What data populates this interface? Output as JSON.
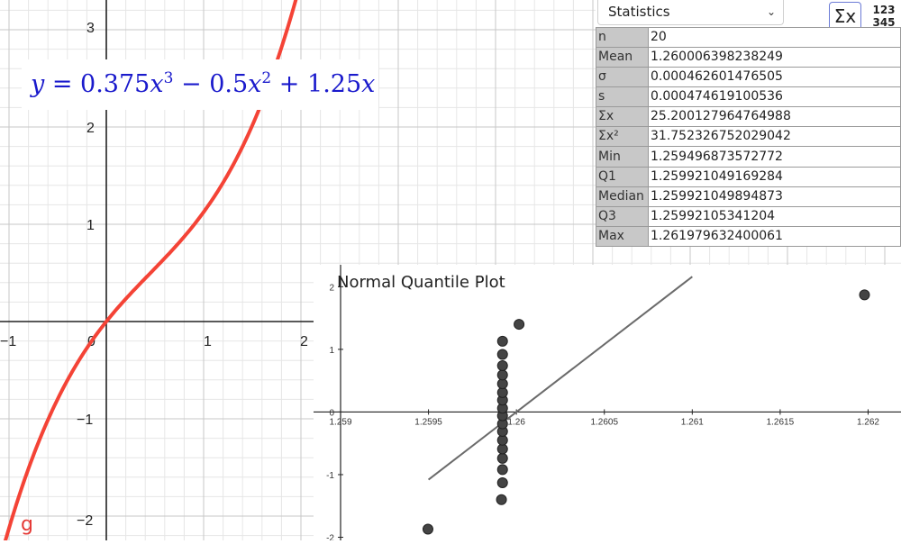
{
  "graph": {
    "function_label": "g",
    "formula": {
      "lhs": "y = ",
      "coef3": "0.375",
      "op1": " − ",
      "coef2": "0.5",
      "op2": " + ",
      "coef1": "1.25",
      "var": "x",
      "exp3": "3",
      "exp2": "2"
    },
    "x_ticks": [
      "−1",
      "0",
      "1",
      "2"
    ],
    "y_ticks": [
      "3",
      "2",
      "1",
      "−1",
      "−2"
    ],
    "curve_color": "#f44336",
    "formula_color": "#1a1acc"
  },
  "statistics": {
    "dropdown_value": "Statistics",
    "sigma_button": "Σx",
    "onevar_button_line1": "123",
    "onevar_button_line2": "345",
    "rows": [
      {
        "label": "n",
        "value": "20"
      },
      {
        "label": "Mean",
        "value": "1.260006398238249"
      },
      {
        "label": "σ",
        "value": "0.000462601476505"
      },
      {
        "label": "s",
        "value": "0.000474619100536"
      },
      {
        "label": "Σx",
        "value": "25.200127964764988"
      },
      {
        "label": "Σx²",
        "value": "31.752326752029042"
      },
      {
        "label": "Min",
        "value": "1.259496873572772"
      },
      {
        "label": "Q1",
        "value": "1.259921049169284"
      },
      {
        "label": "Median",
        "value": "1.259921049894873"
      },
      {
        "label": "Q3",
        "value": "1.25992105341204"
      },
      {
        "label": "Max",
        "value": "1.261979632400061"
      }
    ]
  },
  "chart_data": {
    "type": "scatter",
    "title": "Normal Quantile Plot",
    "x_tick_labels": [
      "1.259",
      "1.2595",
      "1.26",
      "1.2605",
      "1.261",
      "1.2615",
      "1.262"
    ],
    "y_tick_labels": [
      "2",
      "1",
      "0",
      "-1",
      "-2"
    ],
    "xlim": [
      1.259,
      1.2621
    ],
    "ylim": [
      -2.05,
      2.35
    ],
    "points": [
      {
        "x": 1.2594969,
        "y": -1.87
      },
      {
        "x": 1.259915,
        "y": -1.4
      },
      {
        "x": 1.259921,
        "y": -1.13
      },
      {
        "x": 1.259921,
        "y": -0.92
      },
      {
        "x": 1.259921,
        "y": -0.74
      },
      {
        "x": 1.259921,
        "y": -0.59
      },
      {
        "x": 1.259921,
        "y": -0.45
      },
      {
        "x": 1.259921,
        "y": -0.31
      },
      {
        "x": 1.259921,
        "y": -0.19
      },
      {
        "x": 1.259921,
        "y": -0.06
      },
      {
        "x": 1.259921,
        "y": 0.06
      },
      {
        "x": 1.259921,
        "y": 0.19
      },
      {
        "x": 1.259921,
        "y": 0.31
      },
      {
        "x": 1.259921,
        "y": 0.45
      },
      {
        "x": 1.259921,
        "y": 0.59
      },
      {
        "x": 1.259921,
        "y": 0.74
      },
      {
        "x": 1.259921,
        "y": 0.92
      },
      {
        "x": 1.259921,
        "y": 1.13
      },
      {
        "x": 1.260015,
        "y": 1.4
      },
      {
        "x": 1.2619796,
        "y": 1.87
      }
    ],
    "reference_line": {
      "from": {
        "x": 1.2595,
        "y": -1.08
      },
      "to": {
        "x": 1.261,
        "y": 2.16
      }
    },
    "point_color": "#444444",
    "line_color": "#6b6b6b"
  }
}
